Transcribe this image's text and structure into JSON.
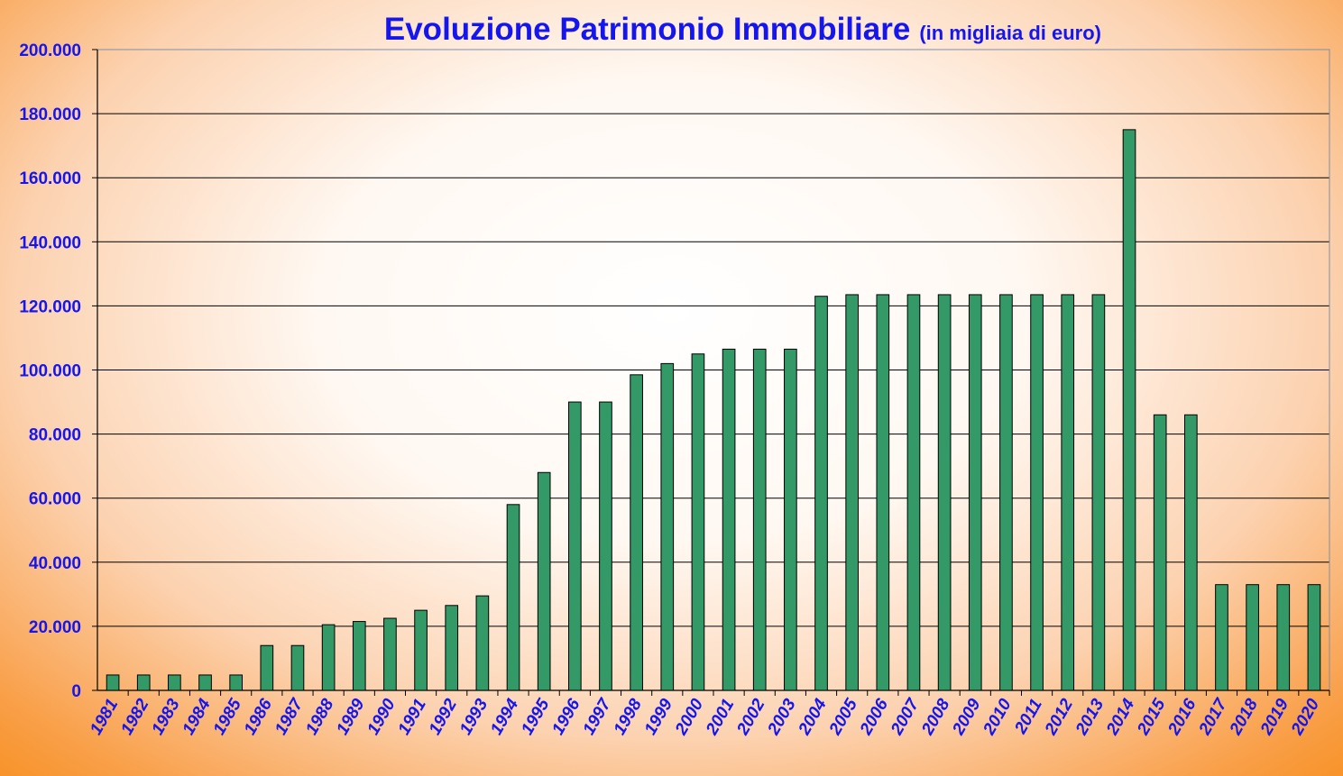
{
  "chart_data": {
    "type": "bar",
    "title": "Evoluzione Patrimonio Immobiliare",
    "subtitle": "(in migliaia  di euro)",
    "xlabel": "",
    "ylabel": "",
    "ylim": [
      0,
      200000
    ],
    "ytick_values": [
      0,
      20000,
      40000,
      60000,
      80000,
      100000,
      120000,
      140000,
      160000,
      180000,
      200000
    ],
    "ytick_labels": [
      "0",
      "20.000",
      "40.000",
      "60.000",
      "80.000",
      "100.000",
      "120.000",
      "140.000",
      "160.000",
      "180.000",
      "200.000"
    ],
    "grid": true,
    "legend": "none",
    "categories": [
      "1981",
      "1982",
      "1983",
      "1984",
      "1985",
      "1986",
      "1987",
      "1988",
      "1989",
      "1990",
      "1991",
      "1992",
      "1993",
      "1994",
      "1995",
      "1996",
      "1997",
      "1998",
      "1999",
      "2000",
      "2001",
      "2002",
      "2003",
      "2004",
      "2005",
      "2006",
      "2007",
      "2008",
      "2009",
      "2010",
      "2011",
      "2012",
      "2013",
      "2014",
      "2015",
      "2016",
      "2017",
      "2018",
      "2019",
      "2020"
    ],
    "values": [
      4800,
      4800,
      4800,
      4800,
      4800,
      14000,
      14000,
      20500,
      21500,
      22500,
      25000,
      26500,
      29500,
      58000,
      68000,
      90000,
      90000,
      98500,
      102000,
      105000,
      106500,
      106500,
      106500,
      123000,
      123500,
      123500,
      123500,
      123500,
      123500,
      123500,
      123500,
      123500,
      123500,
      175000,
      86000,
      86000,
      33000,
      33000,
      33000,
      33000
    ],
    "colors": {
      "bar_fill": "#339966",
      "bar_stroke": "#000000",
      "text": "#1515ee",
      "grid": "#000000",
      "background_edge": "#f78f1f"
    }
  }
}
